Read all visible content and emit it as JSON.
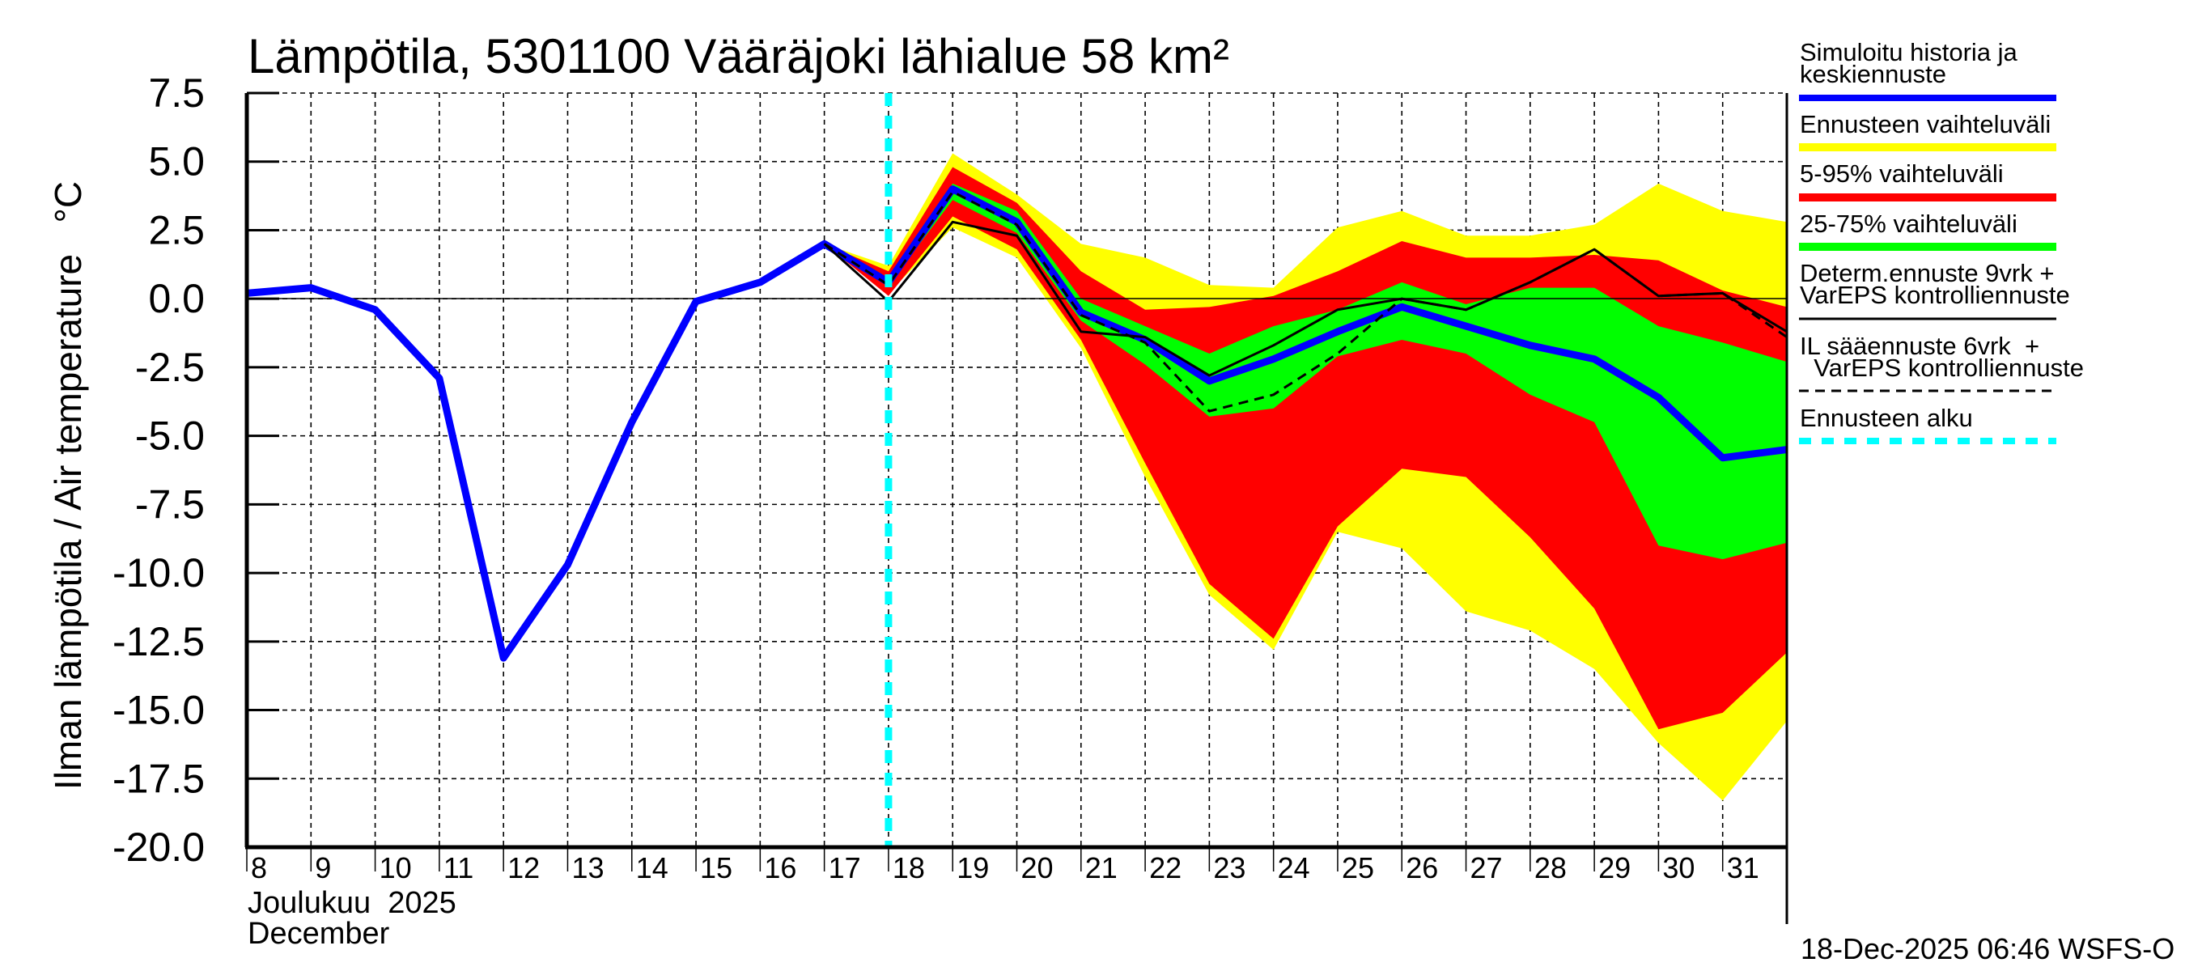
{
  "chart_data": {
    "type": "area",
    "title": "Lämpötila, 5301100 Vääräjoki lähialue 58 km²",
    "ylabel": "Ilman lämpötila / Air temperature   °C",
    "xlabel_line1": "Joulukuu  2025",
    "xlabel_line2": "December",
    "ylim": [
      -20,
      7.5
    ],
    "xlim": [
      8,
      32
    ],
    "yticks": [
      "7.5",
      "5.0",
      "2.5",
      "0.0",
      "-2.5",
      "-5.0",
      "-7.5",
      "-10.0",
      "-12.5",
      "-15.0",
      "-17.5",
      "-20.0"
    ],
    "ytick_values": [
      7.5,
      5,
      2.5,
      0,
      -2.5,
      -5,
      -7.5,
      -10,
      -12.5,
      -15,
      -17.5,
      -20
    ],
    "xticks": [
      "8",
      "9",
      "10",
      "11",
      "12",
      "13",
      "14",
      "15",
      "16",
      "17",
      "18",
      "19",
      "20",
      "21",
      "22",
      "23",
      "24",
      "25",
      "26",
      "27",
      "28",
      "29",
      "30",
      "31"
    ],
    "grid": true,
    "forecast_start_day": 18,
    "history": {
      "x": [
        8,
        9,
        10,
        11,
        12,
        13,
        14,
        15,
        16,
        17,
        18
      ],
      "y": [
        0.2,
        0.4,
        -0.4,
        -2.9,
        -13.1,
        -9.7,
        -4.5,
        -0.1,
        0.6,
        2.0,
        0.6
      ]
    },
    "forecast_x": [
      17,
      18,
      19,
      20,
      21,
      22,
      23,
      24,
      25,
      26,
      27,
      28,
      29,
      30,
      31,
      32
    ],
    "mean": [
      2.0,
      0.6,
      4.0,
      2.8,
      -0.5,
      -1.5,
      -3.0,
      -2.2,
      -1.2,
      -0.3,
      -1.0,
      -1.7,
      -2.2,
      -3.6,
      -5.8,
      -5.5
    ],
    "range_upper": [
      2.0,
      1.2,
      5.3,
      3.8,
      2.0,
      1.5,
      0.5,
      0.4,
      2.6,
      3.2,
      2.3,
      2.3,
      2.7,
      4.2,
      3.2,
      2.8
    ],
    "range_lower": [
      2.0,
      0.2,
      2.6,
      1.5,
      -1.8,
      -6.5,
      -10.8,
      -12.8,
      -8.5,
      -9.1,
      -11.4,
      -12.1,
      -13.5,
      -16.2,
      -18.3,
      -15.4
    ],
    "p5_95_upper": [
      2.0,
      1.0,
      4.8,
      3.5,
      1.0,
      -0.4,
      -0.3,
      0.1,
      1.0,
      2.1,
      1.5,
      1.5,
      1.6,
      1.4,
      0.3,
      -0.3
    ],
    "p5_95_lower": [
      2.0,
      0.1,
      3.0,
      1.8,
      -1.5,
      -6.0,
      -10.4,
      -12.4,
      -8.3,
      -6.2,
      -6.5,
      -8.7,
      -11.3,
      -15.7,
      -15.1,
      -12.9
    ],
    "p25_75_upper": [
      2.0,
      0.6,
      4.2,
      3.2,
      0.0,
      -1.0,
      -2.0,
      -1.0,
      -0.4,
      0.6,
      -0.2,
      0.4,
      0.4,
      -1.0,
      -1.6,
      -2.3
    ],
    "p25_75_lower": [
      2.0,
      0.5,
      3.6,
      2.4,
      -0.8,
      -2.4,
      -4.3,
      -4.0,
      -2.1,
      -1.5,
      -2.0,
      -3.5,
      -4.5,
      -9.0,
      -9.5,
      -8.9
    ],
    "determ": [
      2.0,
      -0.1,
      2.8,
      2.3,
      -1.2,
      -1.4,
      -2.8,
      -1.7,
      -0.4,
      0.0,
      -0.4,
      0.6,
      1.8,
      0.1,
      0.2,
      -1.2
    ],
    "il_forecast": [
      2.0,
      0.5,
      3.9,
      2.7,
      -0.6,
      -1.6,
      -4.1,
      -3.5,
      -2.0,
      0.0,
      -0.4,
      0.6,
      1.8,
      0.1,
      0.2,
      -1.4
    ],
    "legend": [
      {
        "label": "Simuloitu historia ja",
        "label2": "keskiennuste",
        "color": "#0000ff"
      },
      {
        "label": "Ennusteen vaihteluväli",
        "color": "#ffff00"
      },
      {
        "label": "5-95% vaihteluväli",
        "color": "#ff0000"
      },
      {
        "label": "25-75% vaihteluväli",
        "color": "#00ff00"
      },
      {
        "label": "Determ.ennuste 9vrk +",
        "label2": "VarEPS kontrolliennuste",
        "color": "#000000"
      },
      {
        "label": "IL sääennuste 6vrk  +",
        "label2": "  VarEPS kontrolliennuste",
        "color": "#000000"
      },
      {
        "label": "Ennusteen alku",
        "color": "#00ffff"
      }
    ],
    "legend_placement": "right",
    "timestamp": "18-Dec-2025 06:46 WSFS-O"
  }
}
